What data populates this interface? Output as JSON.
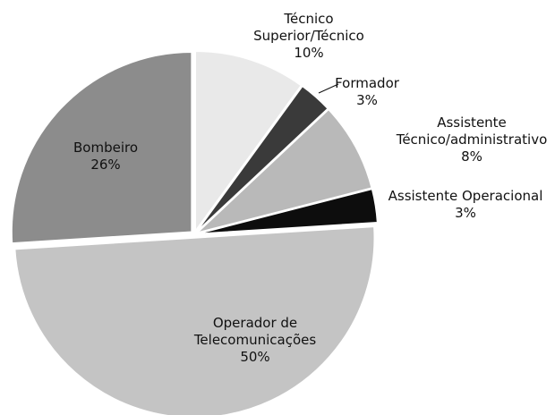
{
  "chart_data": {
    "type": "pie",
    "categories": [
      "Técnico Superior/Técnico",
      "Formador",
      "Assistente Técnico/administrativo",
      "Assistente Operacional",
      "Operador de Telecomunicações",
      "Bombeiro"
    ],
    "values": [
      10,
      3,
      8,
      3,
      50,
      26
    ],
    "value_labels": [
      "10%",
      "3%",
      "8%",
      "3%",
      "50%",
      "26%"
    ],
    "colors": [
      "#e9e9e9",
      "#3a3a3a",
      "#b9b9b9",
      "#0d0d0d",
      "#c4c4c4",
      "#8c8c8c"
    ]
  }
}
